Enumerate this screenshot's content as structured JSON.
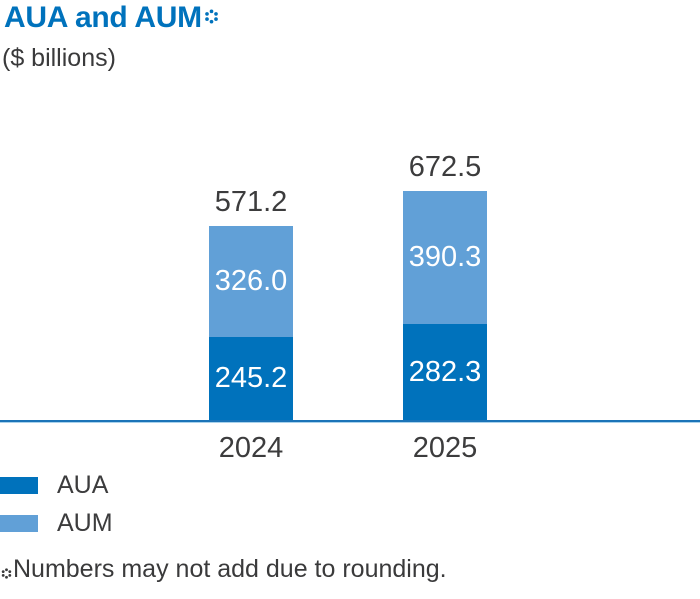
{
  "header": {
    "title": "AUA and AUM",
    "subtitle": "($ billions)"
  },
  "chart_data": {
    "type": "bar",
    "variant": "stacked",
    "title": "AUA and AUM",
    "subtitle": "($ billions)",
    "units": "$ billions",
    "categories": [
      "2024",
      "2025"
    ],
    "series": [
      {
        "name": "AUA",
        "color": "#0072bc",
        "values": [
          245.2,
          282.3
        ],
        "labels": [
          "245.2",
          "282.3"
        ],
        "stack_position": "bottom"
      },
      {
        "name": "AUM",
        "color": "#61a0d7",
        "values": [
          326.0,
          390.3
        ],
        "labels": [
          "326.0",
          "390.3"
        ],
        "stack_position": "top"
      }
    ],
    "totals": [
      571.2,
      672.5
    ],
    "totals_display": [
      "571.2",
      "672.5"
    ],
    "value_label_style": "white labels centered inside segments; totals above bars in dark gray",
    "legend_position": "bottom-left",
    "grid": false,
    "baseline_axis_color": "#1b74b8"
  },
  "legend": {
    "items": [
      {
        "label": "AUA",
        "color": "#0072bc"
      },
      {
        "label": "AUM",
        "color": "#61a0d7"
      }
    ]
  },
  "footnote": {
    "marker": "*",
    "text": "Numbers may not add due to rounding."
  },
  "colors": {
    "title_blue": "#0072bc",
    "aua_dark_blue": "#0072bc",
    "aum_light_blue": "#61a0d7",
    "text_dark": "#3c3c3d",
    "axis_blue": "#1b74b8",
    "axis_light_blue": "#a9d2ec"
  }
}
